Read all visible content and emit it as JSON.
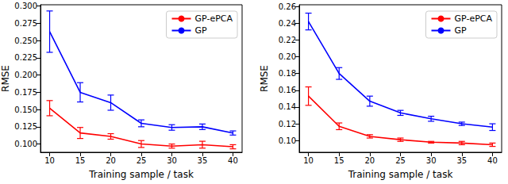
{
  "chart_data": [
    {
      "type": "line",
      "x_label": "Training sample / task",
      "y_label": "RMSE",
      "x": [
        10,
        15,
        20,
        25,
        30,
        35,
        40
      ],
      "xlim": [
        8.5,
        41.5
      ],
      "xticks": [
        10,
        15,
        20,
        25,
        30,
        35,
        40
      ],
      "ylim": [
        0.088,
        0.302
      ],
      "yticks": [
        {
          "value": 0.1,
          "label": "0.100"
        },
        {
          "value": 0.125,
          "label": "0.125"
        },
        {
          "value": 0.15,
          "label": "0.150"
        },
        {
          "value": 0.175,
          "label": "0.175"
        },
        {
          "value": 0.2,
          "label": "0.200"
        },
        {
          "value": 0.225,
          "label": "0.225"
        },
        {
          "value": 0.25,
          "label": "0.250"
        },
        {
          "value": 0.275,
          "label": "0.275"
        },
        {
          "value": 0.3,
          "label": "0.300"
        }
      ],
      "grid": false,
      "legend": "upper right",
      "series": [
        {
          "name": "GP-ePCA",
          "color": "#ff0000",
          "values": [
            0.152,
            0.116,
            0.111,
            0.1,
            0.097,
            0.099,
            0.096
          ],
          "errors": [
            0.011,
            0.008,
            0.004,
            0.005,
            0.003,
            0.005,
            0.003
          ]
        },
        {
          "name": "GP",
          "color": "#0000ff",
          "values": [
            0.263,
            0.175,
            0.16,
            0.13,
            0.124,
            0.125,
            0.116
          ],
          "errors": [
            0.03,
            0.014,
            0.011,
            0.005,
            0.004,
            0.004,
            0.003
          ]
        }
      ]
    },
    {
      "type": "line",
      "x_label": "Training sample / task",
      "y_label": "RMSE",
      "x": [
        10,
        15,
        20,
        25,
        30,
        35,
        40
      ],
      "xlim": [
        8.5,
        41.5
      ],
      "xticks": [
        10,
        15,
        20,
        25,
        30,
        35,
        40
      ],
      "ylim": [
        0.086,
        0.262
      ],
      "yticks": [
        {
          "value": 0.1,
          "label": "0.10"
        },
        {
          "value": 0.12,
          "label": "0.12"
        },
        {
          "value": 0.14,
          "label": "0.14"
        },
        {
          "value": 0.16,
          "label": "0.16"
        },
        {
          "value": 0.18,
          "label": "0.18"
        },
        {
          "value": 0.2,
          "label": "0.20"
        },
        {
          "value": 0.22,
          "label": "0.22"
        },
        {
          "value": 0.24,
          "label": "0.24"
        },
        {
          "value": 0.26,
          "label": "0.26"
        }
      ],
      "grid": false,
      "legend": "upper right",
      "series": [
        {
          "name": "GP-ePCA",
          "color": "#ff0000",
          "values": [
            0.153,
            0.117,
            0.105,
            0.101,
            0.098,
            0.097,
            0.095
          ],
          "errors": [
            0.011,
            0.004,
            0.002,
            0.002,
            0.001,
            0.002,
            0.002
          ]
        },
        {
          "name": "GP",
          "color": "#0000ff",
          "values": [
            0.242,
            0.18,
            0.147,
            0.133,
            0.126,
            0.12,
            0.116
          ],
          "errors": [
            0.01,
            0.007,
            0.006,
            0.003,
            0.003,
            0.002,
            0.004
          ]
        }
      ]
    }
  ]
}
